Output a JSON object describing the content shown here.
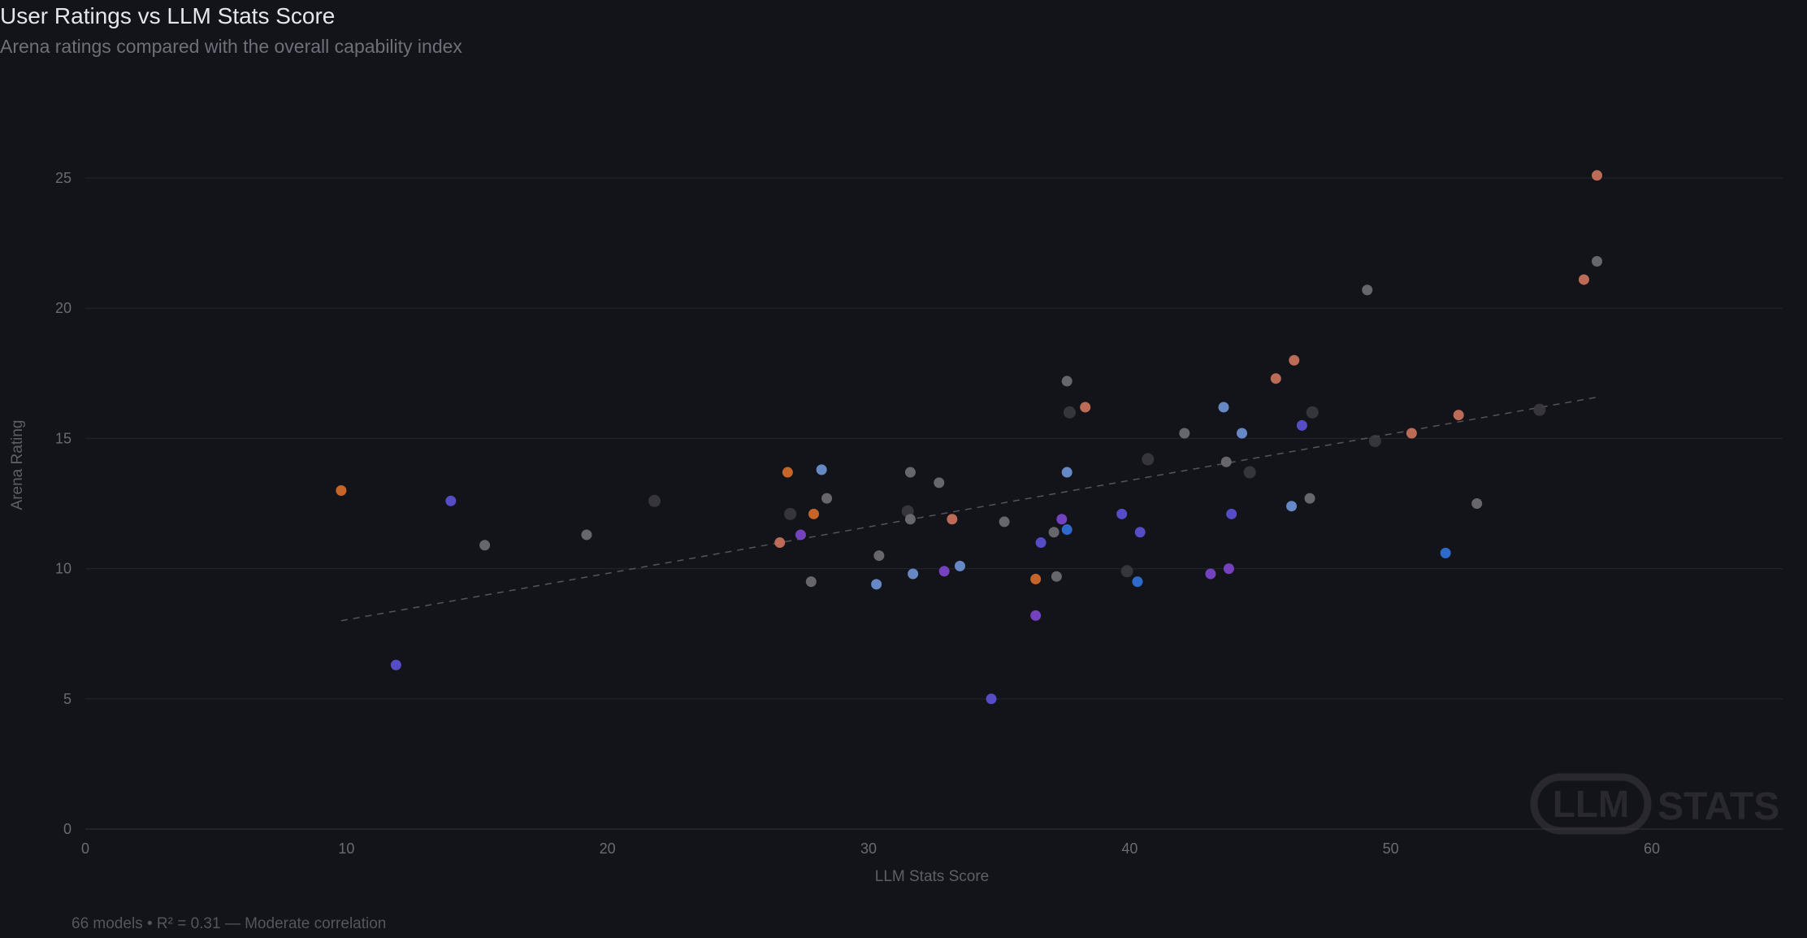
{
  "header": {
    "title": "User Ratings vs LLM Stats Score",
    "subtitle": "Arena ratings compared with the overall capability index"
  },
  "footer": {
    "summary": "66 models • R² = 0.31 — Moderate correlation"
  },
  "logo": {
    "badge_text": "LLM",
    "word": "STATS"
  },
  "colors": {
    "background": "#13131a",
    "grid": "#22222a",
    "trend": "#54545c",
    "gray": "#6b6b70",
    "coral": "#c4705a",
    "orange": "#d0682a",
    "blue": "#6a8fd0",
    "indigo": "#5a4fd0",
    "purple": "#7a45c8",
    "deep_blue": "#2e6fd6",
    "dim": "#3c3c42"
  },
  "chart_data": {
    "type": "scatter",
    "title": "User Ratings vs LLM Stats Score",
    "subtitle": "Arena ratings compared with the overall capability index",
    "xlabel": "LLM Stats Score",
    "ylabel": "Arena Rating",
    "xlim": [
      0,
      65
    ],
    "ylim": [
      0,
      27
    ],
    "xticks": [
      0,
      10,
      20,
      30,
      40,
      50,
      60
    ],
    "yticks": [
      0,
      5,
      10,
      15,
      20,
      25
    ],
    "grid": true,
    "trendline": {
      "x": [
        9.8,
        58.0
      ],
      "y": [
        8.0,
        16.6
      ]
    },
    "points": [
      {
        "x": 57.9,
        "y": 25.1,
        "c": "coral"
      },
      {
        "x": 57.9,
        "y": 21.8,
        "c": "gray"
      },
      {
        "x": 57.4,
        "y": 21.1,
        "c": "coral"
      },
      {
        "x": 49.1,
        "y": 20.7,
        "c": "gray"
      },
      {
        "x": 46.3,
        "y": 18.0,
        "c": "coral"
      },
      {
        "x": 45.6,
        "y": 17.3,
        "c": "coral"
      },
      {
        "x": 37.6,
        "y": 17.2,
        "c": "gray"
      },
      {
        "x": 38.3,
        "y": 16.2,
        "c": "coral"
      },
      {
        "x": 43.6,
        "y": 16.2,
        "c": "blue"
      },
      {
        "x": 37.7,
        "y": 16.0,
        "c": "dim"
      },
      {
        "x": 47.0,
        "y": 16.0,
        "c": "dim"
      },
      {
        "x": 55.7,
        "y": 16.1,
        "c": "dim"
      },
      {
        "x": 52.6,
        "y": 15.9,
        "c": "coral"
      },
      {
        "x": 46.6,
        "y": 15.5,
        "c": "indigo"
      },
      {
        "x": 42.1,
        "y": 15.2,
        "c": "gray"
      },
      {
        "x": 44.3,
        "y": 15.2,
        "c": "blue"
      },
      {
        "x": 50.8,
        "y": 15.2,
        "c": "coral"
      },
      {
        "x": 49.4,
        "y": 14.9,
        "c": "dim"
      },
      {
        "x": 40.7,
        "y": 14.2,
        "c": "dim"
      },
      {
        "x": 43.7,
        "y": 14.1,
        "c": "gray"
      },
      {
        "x": 28.2,
        "y": 13.8,
        "c": "blue"
      },
      {
        "x": 31.6,
        "y": 13.7,
        "c": "gray"
      },
      {
        "x": 26.9,
        "y": 13.7,
        "c": "orange"
      },
      {
        "x": 37.6,
        "y": 13.7,
        "c": "blue"
      },
      {
        "x": 44.6,
        "y": 13.7,
        "c": "dim"
      },
      {
        "x": 32.7,
        "y": 13.3,
        "c": "gray"
      },
      {
        "x": 9.8,
        "y": 13.0,
        "c": "orange"
      },
      {
        "x": 28.4,
        "y": 12.7,
        "c": "gray"
      },
      {
        "x": 46.9,
        "y": 12.7,
        "c": "gray"
      },
      {
        "x": 14.0,
        "y": 12.6,
        "c": "indigo"
      },
      {
        "x": 21.8,
        "y": 12.6,
        "c": "dim"
      },
      {
        "x": 53.3,
        "y": 12.5,
        "c": "gray"
      },
      {
        "x": 46.2,
        "y": 12.4,
        "c": "blue"
      },
      {
        "x": 31.5,
        "y": 12.2,
        "c": "dim"
      },
      {
        "x": 39.7,
        "y": 12.1,
        "c": "indigo"
      },
      {
        "x": 43.9,
        "y": 12.1,
        "c": "indigo"
      },
      {
        "x": 27.0,
        "y": 12.1,
        "c": "dim"
      },
      {
        "x": 27.9,
        "y": 12.1,
        "c": "orange"
      },
      {
        "x": 31.6,
        "y": 11.9,
        "c": "gray"
      },
      {
        "x": 33.2,
        "y": 11.9,
        "c": "coral"
      },
      {
        "x": 37.4,
        "y": 11.9,
        "c": "purple"
      },
      {
        "x": 35.2,
        "y": 11.8,
        "c": "gray"
      },
      {
        "x": 37.1,
        "y": 11.4,
        "c": "gray"
      },
      {
        "x": 37.6,
        "y": 11.5,
        "c": "deep_blue"
      },
      {
        "x": 40.4,
        "y": 11.4,
        "c": "indigo"
      },
      {
        "x": 27.4,
        "y": 11.3,
        "c": "purple"
      },
      {
        "x": 19.2,
        "y": 11.3,
        "c": "gray"
      },
      {
        "x": 36.6,
        "y": 11.0,
        "c": "indigo"
      },
      {
        "x": 26.6,
        "y": 11.0,
        "c": "coral"
      },
      {
        "x": 15.3,
        "y": 10.9,
        "c": "gray"
      },
      {
        "x": 52.1,
        "y": 10.6,
        "c": "deep_blue"
      },
      {
        "x": 30.4,
        "y": 10.5,
        "c": "gray"
      },
      {
        "x": 33.5,
        "y": 10.1,
        "c": "blue"
      },
      {
        "x": 43.8,
        "y": 10.0,
        "c": "purple"
      },
      {
        "x": 32.9,
        "y": 9.9,
        "c": "purple"
      },
      {
        "x": 31.7,
        "y": 9.8,
        "c": "blue"
      },
      {
        "x": 43.1,
        "y": 9.8,
        "c": "purple"
      },
      {
        "x": 39.9,
        "y": 9.9,
        "c": "dim"
      },
      {
        "x": 37.2,
        "y": 9.7,
        "c": "gray"
      },
      {
        "x": 36.4,
        "y": 9.6,
        "c": "orange"
      },
      {
        "x": 27.8,
        "y": 9.5,
        "c": "gray"
      },
      {
        "x": 40.3,
        "y": 9.5,
        "c": "deep_blue"
      },
      {
        "x": 30.3,
        "y": 9.4,
        "c": "blue"
      },
      {
        "x": 36.4,
        "y": 8.2,
        "c": "purple"
      },
      {
        "x": 11.9,
        "y": 6.3,
        "c": "indigo"
      },
      {
        "x": 34.7,
        "y": 5.0,
        "c": "indigo"
      }
    ]
  }
}
